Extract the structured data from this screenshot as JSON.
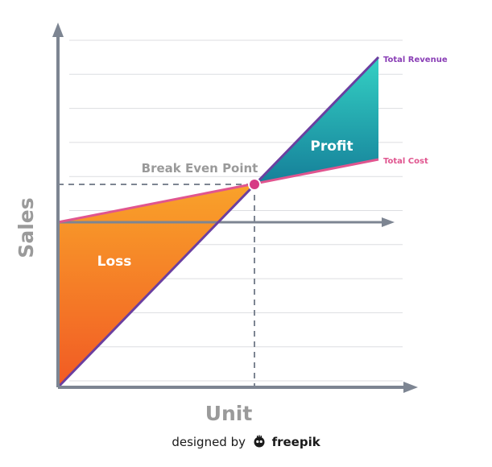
{
  "diagram": {
    "x_axis_label": "Unit",
    "y_axis_label": "Sales",
    "break_even_label": "Break Even Point",
    "region_labels": {
      "loss": "Loss",
      "profit": "Profit"
    },
    "line_labels": {
      "total_revenue": "Total Revenue",
      "total_cost": "Total Cost"
    }
  },
  "credit": {
    "prefix": "designed by",
    "brand": "freepik"
  },
  "colors": {
    "axis": "#7d8592",
    "grid": "#dcdde1",
    "dashed": "#7d8592",
    "revenue_line": "#6b3fa0",
    "cost_line": "#e0558f",
    "break_even_dot": "#d63a85",
    "loss_gradient_top": "#f9a22a",
    "loss_gradient_bottom": "#f15a24",
    "profit_gradient_top": "#34d1c4",
    "profit_gradient_bottom": "#157f99",
    "label_gray": "#9a9a9a",
    "revenue_text": "#8a3fb6",
    "cost_text": "#e0558f"
  }
}
